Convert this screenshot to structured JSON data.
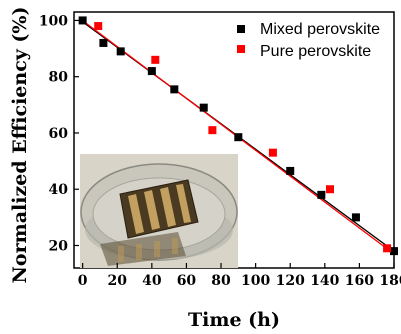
{
  "chart_data": {
    "type": "scatter",
    "title": "",
    "xlabel": "Time (h)",
    "ylabel": "Normalized Efficiency (%)",
    "xlim": [
      -5,
      180
    ],
    "ylim": [
      12,
      103
    ],
    "xticks": [
      0,
      20,
      40,
      60,
      80,
      100,
      120,
      140,
      160,
      180
    ],
    "yticks": [
      20,
      40,
      60,
      80,
      100
    ],
    "xtick_labels": [
      "0",
      "20",
      "40",
      "60",
      "80",
      "100",
      "120",
      "140",
      "160",
      "180"
    ],
    "ytick_labels": [
      "20",
      "40",
      "60",
      "80",
      "100"
    ],
    "legend_position": "top-right",
    "inset": "photo of perovskite solar cell immersed in a dish of water",
    "series": [
      {
        "name": "Mixed perovskite",
        "color": "#000000",
        "marker": "square",
        "x": [
          0,
          12,
          22,
          40,
          53,
          70,
          90,
          120,
          138,
          158,
          180
        ],
        "y": [
          100,
          92,
          89,
          82,
          75.5,
          69,
          58.5,
          46.5,
          38,
          30,
          18
        ],
        "fit": {
          "x": [
            0,
            180
          ],
          "y": [
            99.5,
            18
          ]
        }
      },
      {
        "name": "Pure perovskite",
        "color": "#ff0000",
        "marker": "square",
        "x": [
          9,
          42,
          75,
          110,
          143,
          176
        ],
        "y": [
          98,
          86,
          61,
          53,
          40,
          19
        ],
        "fit": {
          "x": [
            2,
            180
          ],
          "y": [
            99,
            17
          ]
        }
      }
    ]
  }
}
